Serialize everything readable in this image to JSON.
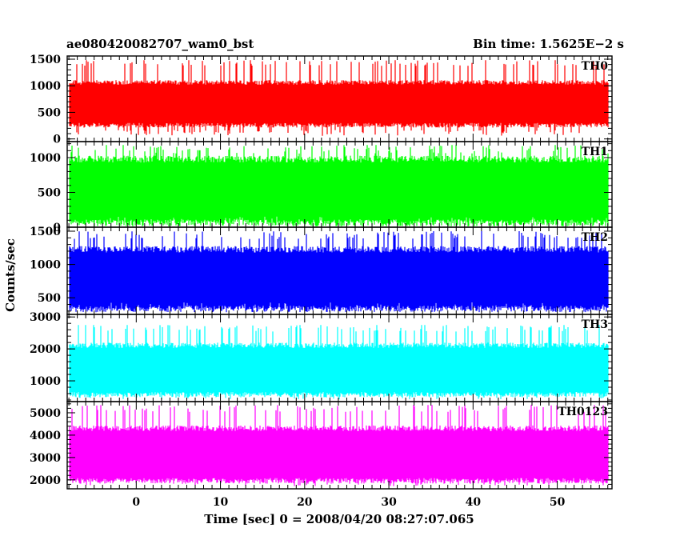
{
  "header": {
    "title": "ae080420082707_wam0_bst",
    "bin_time": "Bin time: 1.5625E−2 s"
  },
  "axes": {
    "ylabel": "Counts/sec",
    "xlabel": "Time [sec] 0 = 2008/04/20 08:27:07.065"
  },
  "chart_data": {
    "type": "line",
    "x_range": [
      -8.2,
      56.5
    ],
    "data_range": [
      -7.9,
      56.0
    ],
    "bin_time": 0.015625,
    "x_ticks": [
      0,
      10,
      20,
      30,
      40,
      50
    ],
    "panels": [
      {
        "name": "TH0",
        "color": "#ff0000",
        "ylim": [
          -50,
          1560
        ],
        "y_ticks": [
          0,
          500,
          1000,
          1500
        ],
        "band": [
          300,
          1020
        ],
        "extremes": [
          60,
          1480
        ]
      },
      {
        "name": "TH1",
        "color": "#00ff00",
        "ylim": [
          0,
          1230
        ],
        "y_ticks": [
          0,
          500,
          1000
        ],
        "band": [
          110,
          930
        ],
        "extremes": [
          30,
          1180
        ]
      },
      {
        "name": "TH2",
        "color": "#0000ff",
        "ylim": [
          250,
          1560
        ],
        "y_ticks": [
          500,
          1000,
          1500
        ],
        "band": [
          380,
          1180
        ],
        "extremes": [
          310,
          1500
        ]
      },
      {
        "name": "TH3",
        "color": "#00ffff",
        "ylim": [
          350,
          3080
        ],
        "y_ticks": [
          1000,
          2000,
          3000
        ],
        "band": [
          650,
          2030
        ],
        "extremes": [
          420,
          2750
        ]
      },
      {
        "name": "TH0123",
        "color": "#ff00ff",
        "ylim": [
          1600,
          5500
        ],
        "y_ticks": [
          2000,
          3000,
          4000,
          5000
        ],
        "band": [
          2080,
          4180
        ],
        "extremes": [
          1720,
          5350
        ]
      }
    ]
  }
}
